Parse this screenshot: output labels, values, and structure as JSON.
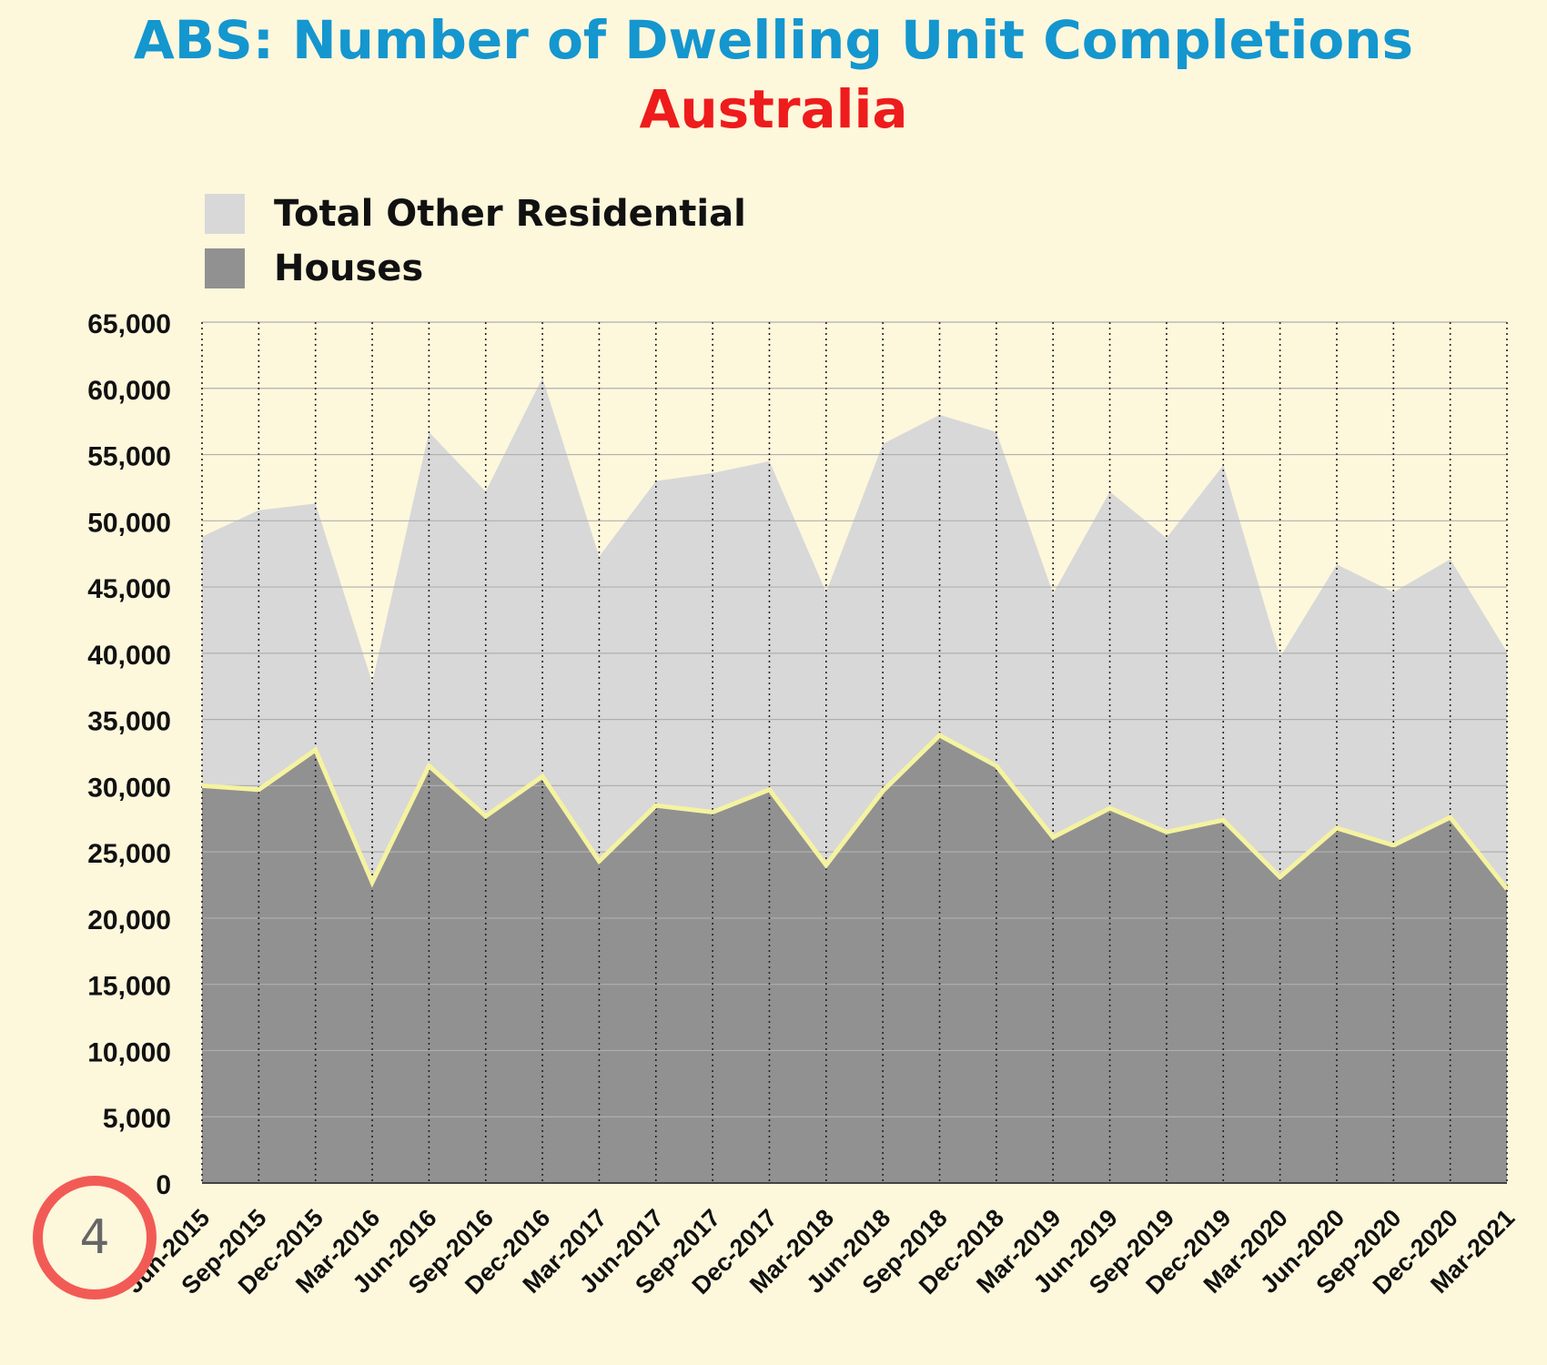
{
  "chart_data": {
    "type": "area",
    "stacked": false,
    "title": "ABS: Number of Dwelling Unit Completions",
    "subtitle": "Australia",
    "ylim": [
      0,
      65000
    ],
    "yticks": [
      0,
      5000,
      10000,
      15000,
      20000,
      25000,
      30000,
      35000,
      40000,
      45000,
      50000,
      55000,
      60000,
      65000
    ],
    "ytick_labels": [
      "0",
      "5,000",
      "10,000",
      "15,000",
      "20,000",
      "25,000",
      "30,000",
      "35,000",
      "40,000",
      "45,000",
      "50,000",
      "55,000",
      "60,000",
      "65,000"
    ],
    "categories": [
      "Jun-2015",
      "Sep-2015",
      "Dec-2015",
      "Mar-2016",
      "Jun-2016",
      "Sep-2016",
      "Dec-2016",
      "Mar-2017",
      "Jun-2017",
      "Sep-2017",
      "Dec-2017",
      "Mar-2018",
      "Jun-2018",
      "Sep-2018",
      "Dec-2018",
      "Mar-2019",
      "Jun-2019",
      "Sep-2019",
      "Dec-2019",
      "Mar-2020",
      "Jun-2020",
      "Sep-2020",
      "Dec-2020",
      "Mar-2021"
    ],
    "grid": true,
    "legend_position": "top-left",
    "series": [
      {
        "name": "Total Other Residential",
        "color": "#d8d8d8",
        "values": [
          48800,
          50800,
          51300,
          37800,
          56700,
          52200,
          60800,
          47300,
          53000,
          53600,
          54500,
          44600,
          55800,
          58000,
          56700,
          44500,
          52200,
          48700,
          54200,
          39700,
          46700,
          44600,
          47100,
          40100
        ]
      },
      {
        "name": "Houses",
        "color": "#919191",
        "line_color": "#f5f3a0",
        "values": [
          30000,
          29700,
          32700,
          22700,
          31500,
          27700,
          30700,
          24300,
          28500,
          28000,
          29700,
          24000,
          29600,
          33800,
          31500,
          26100,
          28300,
          26500,
          27400,
          23100,
          26800,
          25500,
          27600,
          22200
        ]
      }
    ]
  },
  "badge": {
    "number": "4",
    "color": "#f25b55"
  }
}
